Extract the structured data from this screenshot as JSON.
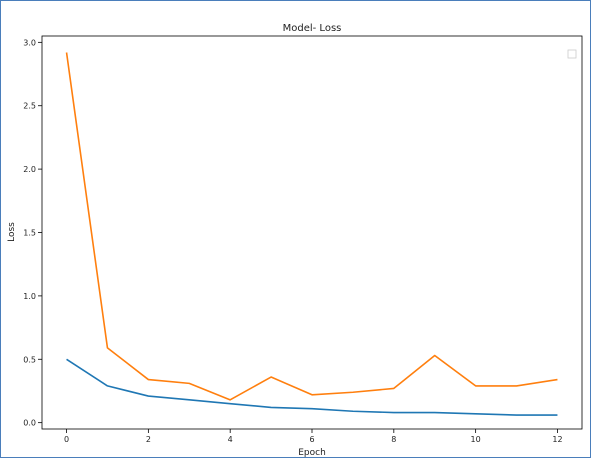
{
  "chart_data": {
    "type": "line",
    "title": "Model- Loss",
    "xlabel": "Epoch",
    "ylabel": "Loss",
    "xlim": [
      -0.6,
      12.6
    ],
    "ylim": [
      -0.05,
      3.05
    ],
    "xticks": [
      0,
      2,
      4,
      6,
      8,
      10,
      12
    ],
    "yticks": [
      0.0,
      0.5,
      1.0,
      1.5,
      2.0,
      2.5,
      3.0
    ],
    "xtick_labels": [
      "0",
      "2",
      "4",
      "6",
      "8",
      "10",
      "12"
    ],
    "ytick_labels": [
      "0.0",
      "0.5",
      "1.0",
      "1.5",
      "2.0",
      "2.5",
      "3.0"
    ],
    "x": [
      0,
      1,
      2,
      3,
      4,
      5,
      6,
      7,
      8,
      9,
      10,
      11,
      12
    ],
    "series": [
      {
        "color": "#1f77b4",
        "values": [
          0.5,
          0.29,
          0.21,
          0.18,
          0.15,
          0.12,
          0.11,
          0.09,
          0.08,
          0.08,
          0.07,
          0.06,
          0.06
        ]
      },
      {
        "color": "#ff7f0e",
        "values": [
          2.92,
          0.59,
          0.34,
          0.31,
          0.18,
          0.36,
          0.22,
          0.24,
          0.27,
          0.53,
          0.29,
          0.29,
          0.34
        ]
      }
    ],
    "grid": false,
    "legend": "upper right, empty"
  }
}
